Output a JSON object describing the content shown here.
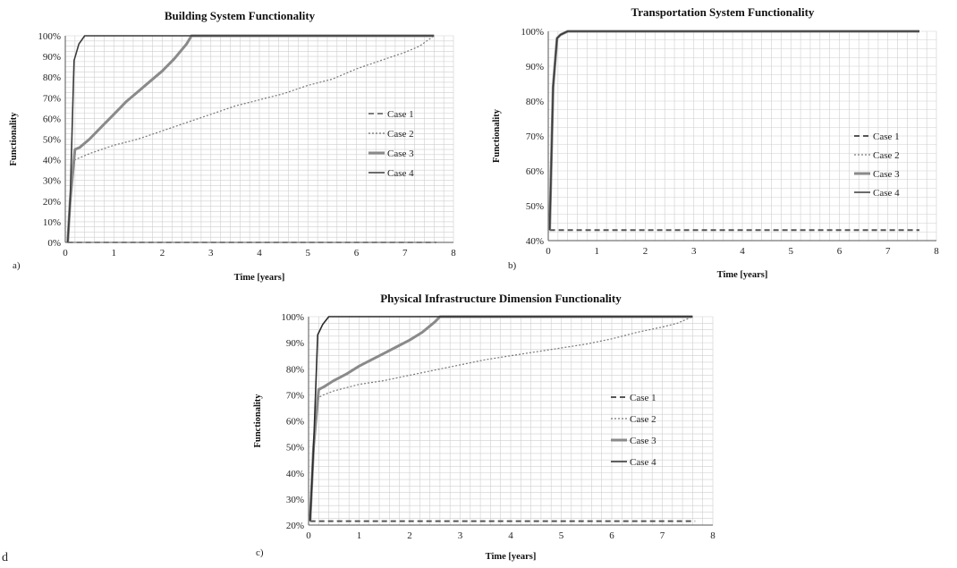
{
  "stray_mark": "d",
  "chart_data": [
    {
      "type": "line",
      "title": "Building System Functionality",
      "xlabel": "Time [years]",
      "ylabel": "Functionality",
      "panel_label": "a)",
      "xlim": [
        0,
        8
      ],
      "ylim": [
        0,
        1
      ],
      "xticks": [
        0,
        1,
        2,
        3,
        4,
        5,
        6,
        7,
        8
      ],
      "xtick_labels": [
        "0",
        "1",
        "2",
        "3",
        "4",
        "5",
        "6",
        "7",
        "8"
      ],
      "yticks": [
        0,
        0.1,
        0.2,
        0.3,
        0.4,
        0.5,
        0.6,
        0.7,
        0.8,
        0.9,
        1.0
      ],
      "ytick_labels": [
        "0%",
        "10%",
        "20%",
        "30%",
        "40%",
        "50%",
        "60%",
        "70%",
        "80%",
        "90%",
        "100%"
      ],
      "grid": true,
      "legend_position": "right",
      "series": [
        {
          "name": "Case 1",
          "style": "dashed",
          "color": "#555555",
          "width": 1.4,
          "x": [
            0.05,
            7.65
          ],
          "y": [
            0.0,
            0.0
          ]
        },
        {
          "name": "Case 2",
          "style": "dotted",
          "color": "#777777",
          "width": 1.2,
          "x": [
            0.05,
            0.1,
            0.2,
            0.3,
            0.5,
            1,
            1.5,
            2,
            2.5,
            3,
            3.5,
            4,
            4.5,
            5,
            5.5,
            6,
            6.5,
            7,
            7.3,
            7.6
          ],
          "y": [
            0.0,
            0.2,
            0.4,
            0.41,
            0.43,
            0.47,
            0.5,
            0.54,
            0.58,
            0.62,
            0.66,
            0.69,
            0.72,
            0.76,
            0.79,
            0.84,
            0.88,
            0.92,
            0.95,
            1.0
          ]
        },
        {
          "name": "Case 3",
          "style": "solid",
          "color": "#8a8a8a",
          "width": 3,
          "x": [
            0.05,
            0.1,
            0.2,
            0.3,
            0.5,
            0.75,
            1,
            1.25,
            1.5,
            1.75,
            2,
            2.25,
            2.5,
            2.6,
            7.6
          ],
          "y": [
            0.0,
            0.2,
            0.45,
            0.46,
            0.5,
            0.56,
            0.62,
            0.68,
            0.73,
            0.78,
            0.83,
            0.89,
            0.96,
            1.0,
            1.0
          ]
        },
        {
          "name": "Case 4",
          "style": "solid",
          "color": "#3a3a3a",
          "width": 1.6,
          "x": [
            0.05,
            0.1,
            0.18,
            0.28,
            0.4,
            7.6
          ],
          "y": [
            0.0,
            0.2,
            0.88,
            0.96,
            1.0,
            1.0
          ]
        }
      ]
    },
    {
      "type": "line",
      "title": "Transportation System Functionality",
      "xlabel": "Time [years]",
      "ylabel": "Functionality",
      "panel_label": "b)",
      "xlim": [
        0,
        8
      ],
      "ylim": [
        0.4,
        1
      ],
      "xticks": [
        0,
        1,
        2,
        3,
        4,
        5,
        6,
        7,
        8
      ],
      "xtick_labels": [
        "0",
        "1",
        "2",
        "3",
        "4",
        "5",
        "6",
        "7",
        "8"
      ],
      "yticks": [
        0.4,
        0.5,
        0.6,
        0.7,
        0.8,
        0.9,
        1.0
      ],
      "ytick_labels": [
        "40%",
        "50%",
        "60%",
        "70%",
        "80%",
        "90%",
        "100%"
      ],
      "grid": true,
      "legend_position": "right",
      "series": [
        {
          "name": "Case 1",
          "style": "dashed",
          "color": "#555555",
          "width": 2,
          "x": [
            0.03,
            7.65
          ],
          "y": [
            0.43,
            0.43
          ]
        },
        {
          "name": "Case 2",
          "style": "dotted",
          "color": "#777777",
          "width": 1.2,
          "x": [
            0.03,
            0.1,
            0.18,
            0.25,
            0.4,
            7.65
          ],
          "y": [
            0.43,
            0.84,
            0.98,
            0.99,
            1.0,
            1.0
          ]
        },
        {
          "name": "Case 3",
          "style": "solid",
          "color": "#8a8a8a",
          "width": 3,
          "x": [
            0.03,
            0.1,
            0.18,
            0.25,
            0.4,
            7.65
          ],
          "y": [
            0.43,
            0.84,
            0.98,
            0.99,
            1.0,
            1.0
          ]
        },
        {
          "name": "Case 4",
          "style": "solid",
          "color": "#3a3a3a",
          "width": 1.6,
          "x": [
            0.03,
            0.1,
            0.18,
            0.25,
            0.4,
            7.65
          ],
          "y": [
            0.43,
            0.84,
            0.98,
            0.99,
            1.0,
            1.0
          ]
        }
      ]
    },
    {
      "type": "line",
      "title": "Physical Infrastructure Dimension Functionality",
      "xlabel": "Time [years]",
      "ylabel": "Functionality",
      "panel_label": "c)",
      "xlim": [
        0,
        8
      ],
      "ylim": [
        0.2,
        1
      ],
      "xticks": [
        0,
        1,
        2,
        3,
        4,
        5,
        6,
        7,
        8
      ],
      "xtick_labels": [
        "0",
        "1",
        "2",
        "3",
        "4",
        "5",
        "6",
        "7",
        "8"
      ],
      "yticks": [
        0.2,
        0.3,
        0.4,
        0.5,
        0.6,
        0.7,
        0.8,
        0.9,
        1.0
      ],
      "ytick_labels": [
        "20%",
        "30%",
        "40%",
        "50%",
        "60%",
        "70%",
        "80%",
        "90%",
        "100%"
      ],
      "grid": true,
      "legend_position": "right",
      "series": [
        {
          "name": "Case 1",
          "style": "dashed",
          "color": "#555555",
          "width": 2,
          "x": [
            0.03,
            7.65
          ],
          "y": [
            0.215,
            0.215
          ]
        },
        {
          "name": "Case 2",
          "style": "dotted",
          "color": "#777777",
          "width": 1.2,
          "x": [
            0.03,
            0.1,
            0.2,
            0.3,
            0.5,
            1,
            1.5,
            2,
            2.5,
            3,
            3.5,
            4,
            4.5,
            5,
            5.5,
            6,
            6.5,
            7,
            7.3,
            7.6
          ],
          "y": [
            0.215,
            0.5,
            0.69,
            0.7,
            0.715,
            0.74,
            0.755,
            0.775,
            0.795,
            0.815,
            0.835,
            0.85,
            0.865,
            0.88,
            0.895,
            0.915,
            0.94,
            0.96,
            0.975,
            1.0
          ]
        },
        {
          "name": "Case 3",
          "style": "solid",
          "color": "#8a8a8a",
          "width": 3,
          "x": [
            0.03,
            0.1,
            0.2,
            0.3,
            0.5,
            0.75,
            1,
            1.25,
            1.5,
            1.75,
            2,
            2.25,
            2.5,
            2.6,
            7.6
          ],
          "y": [
            0.215,
            0.5,
            0.72,
            0.73,
            0.755,
            0.78,
            0.81,
            0.835,
            0.86,
            0.885,
            0.91,
            0.94,
            0.98,
            1.0,
            1.0
          ]
        },
        {
          "name": "Case 4",
          "style": "solid",
          "color": "#2a2a2a",
          "width": 1.6,
          "x": [
            0.03,
            0.1,
            0.18,
            0.28,
            0.4,
            7.6
          ],
          "y": [
            0.215,
            0.5,
            0.93,
            0.97,
            1.0,
            1.0
          ]
        }
      ]
    }
  ]
}
